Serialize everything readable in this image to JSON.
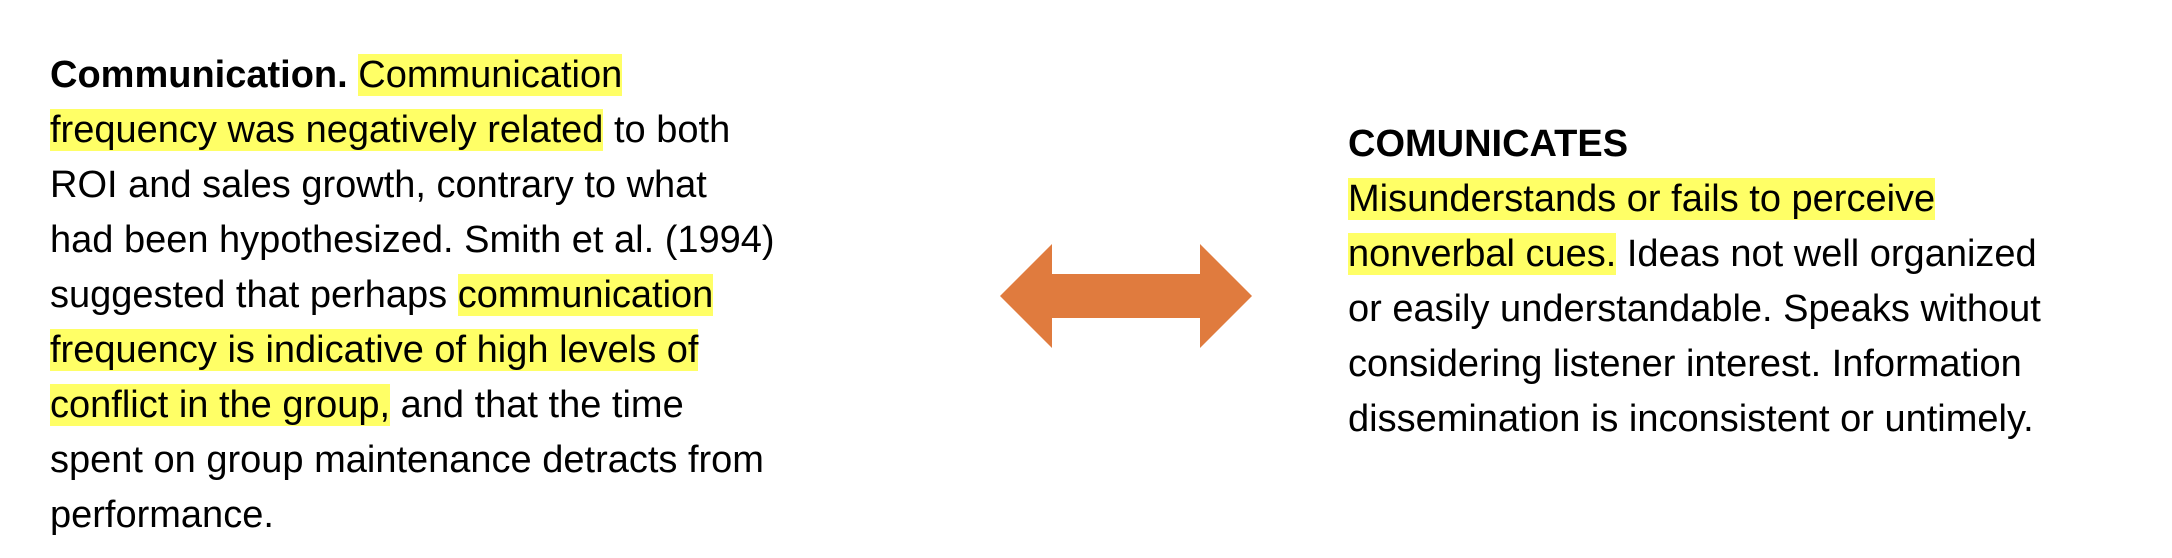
{
  "left": {
    "heading": "Communication.",
    "lines": [
      [
        "Communication"
      ],
      [
        "frequency was negatively related",
        " to both"
      ],
      [
        "ROI and sales growth, contrary to what"
      ],
      [
        "had been hypothesized. Smith et al. (1994)"
      ],
      [
        "suggested that perhaps ",
        "communication"
      ],
      [
        "frequency is indicative of high levels of"
      ],
      [
        "conflict in the group,",
        " and that the time"
      ],
      [
        "spent on group maintenance detracts from"
      ],
      [
        "performance."
      ]
    ]
  },
  "right": {
    "heading": "COMUNICATES",
    "lines": [
      [
        "Misunderstands or fails to perceive"
      ],
      [
        "nonverbal cues.",
        " Ideas not well organized"
      ],
      [
        "or easily understandable. Speaks without"
      ],
      [
        "considering listener interest. Information"
      ],
      [
        "dissemination is inconsistent or untimely."
      ]
    ]
  },
  "colors": {
    "highlight": "#ffff66",
    "arrow": "#e07b3e"
  },
  "icons": {
    "connector": "double-arrow-icon"
  }
}
